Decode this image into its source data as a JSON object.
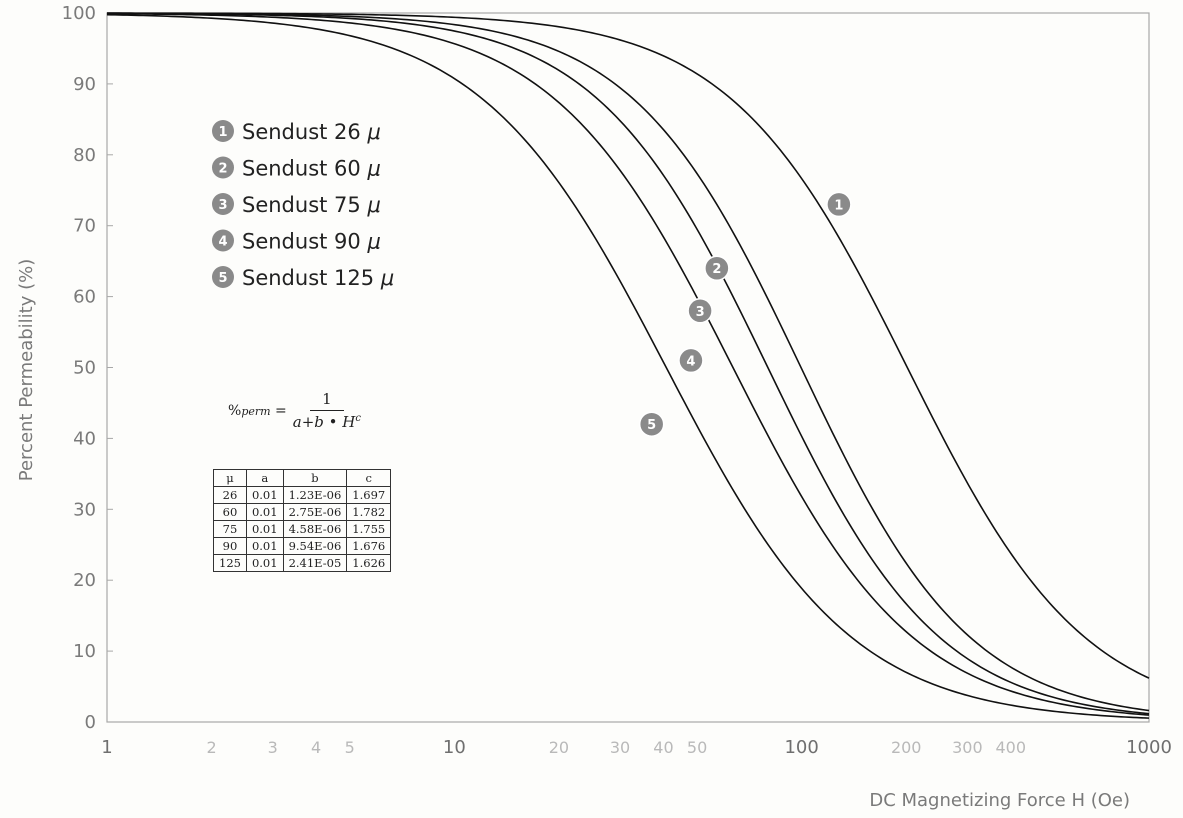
{
  "chart_data": {
    "type": "line",
    "xlabel": "DC Magnetizing Force H (Oe)",
    "ylabel": "Percent Permeability (%)",
    "xscale": "log",
    "xlim": [
      1,
      1000
    ],
    "ylim": [
      0,
      100
    ],
    "grid": false,
    "legend_placement": "top-left",
    "x_major_ticks": [
      {
        "v": 1,
        "label": "1"
      },
      {
        "v": 10,
        "label": "10"
      },
      {
        "v": 100,
        "label": "100"
      },
      {
        "v": 1000,
        "label": "1000"
      }
    ],
    "x_minor_ticks": [
      {
        "v": 2,
        "label": "2"
      },
      {
        "v": 3,
        "label": "3"
      },
      {
        "v": 4,
        "label": "4"
      },
      {
        "v": 5,
        "label": "5"
      },
      {
        "v": 20,
        "label": "20"
      },
      {
        "v": 30,
        "label": "30"
      },
      {
        "v": 40,
        "label": "40"
      },
      {
        "v": 50,
        "label": "50"
      },
      {
        "v": 200,
        "label": "200"
      },
      {
        "v": 300,
        "label": "300"
      },
      {
        "v": 400,
        "label": "400"
      }
    ],
    "y_ticks": [
      0,
      10,
      20,
      30,
      40,
      50,
      60,
      70,
      80,
      90,
      100
    ],
    "series": [
      {
        "name": "Sendust 26",
        "unit": "μ",
        "badge": "1",
        "a": 0.01,
        "b": 1.23e-06,
        "c": 1.697,
        "label_at": [
          128,
          73
        ]
      },
      {
        "name": "Sendust 60",
        "unit": "μ",
        "badge": "2",
        "a": 0.01,
        "b": 2.75e-06,
        "c": 1.782,
        "label_at": [
          57,
          64
        ]
      },
      {
        "name": "Sendust 75",
        "unit": "μ",
        "badge": "3",
        "a": 0.01,
        "b": 4.58e-06,
        "c": 1.755,
        "label_at": [
          51,
          58
        ]
      },
      {
        "name": "Sendust 90",
        "unit": "μ",
        "badge": "4",
        "a": 0.01,
        "b": 9.54e-06,
        "c": 1.676,
        "label_at": [
          48,
          51
        ]
      },
      {
        "name": "Sendust 125",
        "unit": "μ",
        "badge": "5",
        "a": 0.01,
        "b": 2.41e-05,
        "c": 1.626,
        "label_at": [
          37,
          42
        ]
      }
    ],
    "formula": {
      "lhs": "%",
      "lhs_sub": "perm",
      "numerator": "1",
      "denominator": "a+b • H",
      "exponent": "c"
    },
    "table": {
      "headers": [
        "μ",
        "a",
        "b",
        "c"
      ],
      "rows": [
        [
          "26",
          "0.01",
          "1.23E-06",
          "1.697"
        ],
        [
          "60",
          "0.01",
          "2.75E-06",
          "1.782"
        ],
        [
          "75",
          "0.01",
          "4.58E-06",
          "1.755"
        ],
        [
          "90",
          "0.01",
          "9.54E-06",
          "1.676"
        ],
        [
          "125",
          "0.01",
          "2.41E-05",
          "1.626"
        ]
      ]
    },
    "colors": {
      "curve": "#111111",
      "badge": "#8a8a8a",
      "axis": "#9a9a9a"
    }
  }
}
